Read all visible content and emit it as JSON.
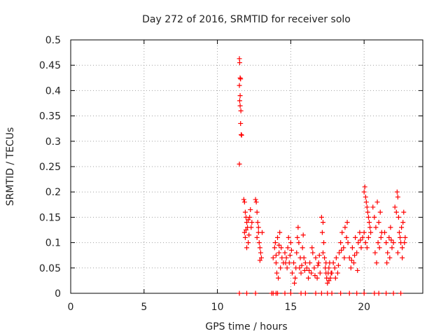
{
  "chart_data": {
    "type": "scatter",
    "title": "Day 272 of 2016, SRMTID for receiver solo",
    "xlabel": "GPS time / hours",
    "ylabel": "SRMTID / TECUs",
    "xlim": [
      0,
      24
    ],
    "ylim": [
      0,
      0.5
    ],
    "x_ticks": [
      "0",
      "5",
      "10",
      "15",
      "20"
    ],
    "x_tick_values": [
      0,
      5,
      10,
      15,
      20
    ],
    "y_ticks": [
      "0",
      "0.05",
      "0.1",
      "0.15",
      "0.2",
      "0.25",
      "0.3",
      "0.35",
      "0.4",
      "0.45",
      "0.5"
    ],
    "y_tick_values": [
      0,
      0.05,
      0.1,
      0.15,
      0.2,
      0.25,
      0.3,
      0.35,
      0.4,
      0.45,
      0.5
    ],
    "grid": true,
    "marker": "plus",
    "color": "#ff0000",
    "series": [
      {
        "points": [
          [
            11.5,
            0.463
          ],
          [
            11.52,
            0.455
          ],
          [
            11.55,
            0.425
          ],
          [
            11.58,
            0.423
          ],
          [
            11.5,
            0.41
          ],
          [
            11.55,
            0.39
          ],
          [
            11.52,
            0.38
          ],
          [
            11.55,
            0.37
          ],
          [
            11.6,
            0.36
          ],
          [
            11.58,
            0.335
          ],
          [
            11.62,
            0.313
          ],
          [
            11.65,
            0.312
          ],
          [
            11.5,
            0.255
          ],
          [
            11.8,
            0.185
          ],
          [
            11.85,
            0.18
          ],
          [
            11.9,
            0.16
          ],
          [
            11.95,
            0.15
          ],
          [
            12.0,
            0.14
          ],
          [
            12.05,
            0.13
          ],
          [
            11.85,
            0.12
          ],
          [
            11.9,
            0.11
          ],
          [
            12.1,
            0.1
          ],
          [
            12.2,
            0.15
          ],
          [
            12.3,
            0.13
          ],
          [
            12.0,
            0.09
          ],
          [
            12.15,
            0.115
          ],
          [
            12.25,
            0.165
          ],
          [
            11.95,
            0.125
          ],
          [
            12.1,
            0.145
          ],
          [
            12.35,
            0.14
          ],
          [
            12.6,
            0.185
          ],
          [
            12.65,
            0.18
          ],
          [
            12.7,
            0.16
          ],
          [
            12.75,
            0.14
          ],
          [
            12.8,
            0.12
          ],
          [
            12.85,
            0.1
          ],
          [
            12.9,
            0.09
          ],
          [
            12.95,
            0.08
          ],
          [
            13.0,
            0.07
          ],
          [
            12.7,
            0.11
          ],
          [
            12.8,
            0.13
          ],
          [
            13.05,
            0.12
          ],
          [
            12.9,
            0.065
          ],
          [
            13.8,
            0.07
          ],
          [
            13.9,
            0.09
          ],
          [
            14.0,
            0.06
          ],
          [
            14.1,
            0.11
          ],
          [
            14.2,
            0.08
          ],
          [
            14.3,
            0.05
          ],
          [
            14.05,
            0.04
          ],
          [
            14.15,
            0.03
          ],
          [
            14.25,
            0.12
          ],
          [
            13.95,
            0.1
          ],
          [
            14.35,
            0.09
          ],
          [
            14.4,
            0.07
          ],
          [
            14.5,
            0.06
          ],
          [
            14.0,
            0.075
          ],
          [
            14.2,
            0.095
          ],
          [
            14.6,
            0.08
          ],
          [
            14.7,
            0.07
          ],
          [
            14.8,
            0.09
          ],
          [
            14.9,
            0.06
          ],
          [
            15.0,
            0.1
          ],
          [
            14.75,
            0.05
          ],
          [
            14.85,
            0.11
          ],
          [
            14.65,
            0.06
          ],
          [
            14.95,
            0.075
          ],
          [
            15.05,
            0.085
          ],
          [
            15.1,
            0.04
          ],
          [
            15.2,
            0.06
          ],
          [
            15.3,
            0.03
          ],
          [
            15.4,
            0.08
          ],
          [
            15.5,
            0.13
          ],
          [
            15.6,
            0.05
          ],
          [
            15.7,
            0.04
          ],
          [
            15.8,
            0.09
          ],
          [
            15.9,
            0.07
          ],
          [
            16.0,
            0.06
          ],
          [
            15.25,
            0.02
          ],
          [
            15.45,
            0.11
          ],
          [
            15.55,
            0.1
          ],
          [
            15.65,
            0.07
          ],
          [
            15.85,
            0.115
          ],
          [
            15.35,
            0.05
          ],
          [
            15.75,
            0.055
          ],
          [
            15.95,
            0.045
          ],
          [
            16.1,
            0.05
          ],
          [
            16.2,
            0.03
          ],
          [
            16.3,
            0.06
          ],
          [
            16.4,
            0.04
          ],
          [
            16.5,
            0.08
          ],
          [
            16.6,
            0.05
          ],
          [
            16.7,
            0.07
          ],
          [
            16.8,
            0.03
          ],
          [
            16.9,
            0.06
          ],
          [
            17.0,
            0.04
          ],
          [
            16.45,
            0.09
          ],
          [
            16.85,
            0.055
          ],
          [
            16.25,
            0.045
          ],
          [
            16.65,
            0.035
          ],
          [
            16.95,
            0.075
          ],
          [
            17.1,
            0.15
          ],
          [
            17.15,
            0.12
          ],
          [
            17.2,
            0.14
          ],
          [
            17.25,
            0.1
          ],
          [
            17.3,
            0.07
          ],
          [
            17.35,
            0.05
          ],
          [
            17.4,
            0.04
          ],
          [
            17.45,
            0.03
          ],
          [
            17.5,
            0.02
          ],
          [
            17.55,
            0.04
          ],
          [
            17.6,
            0.05
          ],
          [
            17.65,
            0.06
          ],
          [
            17.7,
            0.03
          ],
          [
            17.75,
            0.04
          ],
          [
            17.2,
            0.08
          ],
          [
            17.4,
            0.06
          ],
          [
            17.6,
            0.025
          ],
          [
            17.8,
            0.04
          ],
          [
            17.9,
            0.06
          ],
          [
            18.0,
            0.05
          ],
          [
            18.1,
            0.07
          ],
          [
            18.2,
            0.04
          ],
          [
            18.3,
            0.08
          ],
          [
            18.4,
            0.1
          ],
          [
            18.5,
            0.12
          ],
          [
            18.6,
            0.09
          ],
          [
            18.7,
            0.13
          ],
          [
            18.8,
            0.11
          ],
          [
            18.9,
            0.1
          ],
          [
            18.05,
            0.03
          ],
          [
            18.25,
            0.055
          ],
          [
            18.45,
            0.085
          ],
          [
            18.65,
            0.07
          ],
          [
            18.85,
            0.14
          ],
          [
            19.0,
            0.07
          ],
          [
            19.1,
            0.05
          ],
          [
            19.2,
            0.09
          ],
          [
            19.3,
            0.06
          ],
          [
            19.4,
            0.11
          ],
          [
            19.5,
            0.08
          ],
          [
            19.6,
            0.1
          ],
          [
            19.7,
            0.12
          ],
          [
            19.8,
            0.09
          ],
          [
            19.9,
            0.11
          ],
          [
            19.15,
            0.065
          ],
          [
            19.35,
            0.075
          ],
          [
            19.55,
            0.045
          ],
          [
            19.75,
            0.105
          ],
          [
            20.0,
            0.2
          ],
          [
            20.05,
            0.21
          ],
          [
            20.1,
            0.19
          ],
          [
            20.15,
            0.18
          ],
          [
            20.2,
            0.17
          ],
          [
            20.25,
            0.16
          ],
          [
            20.3,
            0.15
          ],
          [
            20.35,
            0.14
          ],
          [
            20.4,
            0.13
          ],
          [
            20.0,
            0.12
          ],
          [
            20.1,
            0.1
          ],
          [
            20.2,
            0.09
          ],
          [
            20.3,
            0.11
          ],
          [
            20.45,
            0.12
          ],
          [
            20.6,
            0.17
          ],
          [
            20.7,
            0.15
          ],
          [
            20.8,
            0.13
          ],
          [
            20.9,
            0.18
          ],
          [
            21.0,
            0.14
          ],
          [
            21.1,
            0.16
          ],
          [
            21.2,
            0.12
          ],
          [
            20.75,
            0.08
          ],
          [
            20.85,
            0.06
          ],
          [
            20.95,
            0.1
          ],
          [
            21.05,
            0.09
          ],
          [
            21.15,
            0.11
          ],
          [
            21.4,
            0.12
          ],
          [
            21.5,
            0.1
          ],
          [
            21.6,
            0.08
          ],
          [
            21.7,
            0.11
          ],
          [
            21.8,
            0.13
          ],
          [
            21.9,
            0.09
          ],
          [
            22.0,
            0.1
          ],
          [
            21.55,
            0.06
          ],
          [
            21.75,
            0.07
          ],
          [
            21.85,
            0.105
          ],
          [
            22.1,
            0.17
          ],
          [
            22.2,
            0.16
          ],
          [
            22.25,
            0.2
          ],
          [
            22.3,
            0.19
          ],
          [
            22.35,
            0.15
          ],
          [
            22.4,
            0.12
          ],
          [
            22.45,
            0.11
          ],
          [
            22.5,
            0.1
          ],
          [
            22.55,
            0.13
          ],
          [
            22.6,
            0.09
          ],
          [
            22.65,
            0.14
          ],
          [
            22.7,
            0.16
          ],
          [
            22.75,
            0.1
          ],
          [
            22.8,
            0.11
          ],
          [
            22.3,
            0.08
          ],
          [
            22.6,
            0.07
          ],
          [
            11.5,
            0.0
          ],
          [
            12.0,
            0.0
          ],
          [
            12.6,
            0.0
          ],
          [
            13.7,
            0.0
          ],
          [
            13.8,
            0.0
          ],
          [
            14.0,
            0.0
          ],
          [
            14.1,
            0.0
          ],
          [
            14.6,
            0.0
          ],
          [
            15.0,
            0.0
          ],
          [
            15.7,
            0.0
          ],
          [
            16.0,
            0.0
          ],
          [
            16.7,
            0.0
          ],
          [
            17.1,
            0.0
          ],
          [
            17.5,
            0.0
          ],
          [
            17.8,
            0.0
          ],
          [
            18.4,
            0.0
          ],
          [
            19.0,
            0.0
          ],
          [
            19.5,
            0.0
          ],
          [
            20.0,
            0.0
          ],
          [
            20.7,
            0.0
          ],
          [
            21.0,
            0.0
          ],
          [
            21.5,
            0.0
          ],
          [
            22.0,
            0.0
          ],
          [
            22.5,
            0.0
          ]
        ]
      }
    ]
  }
}
